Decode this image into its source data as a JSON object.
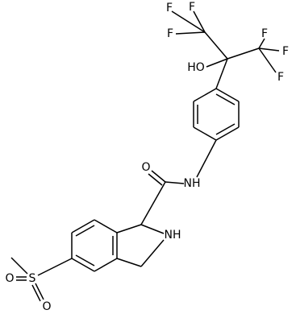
{
  "atoms": [
    {
      "label": "F"
    },
    {
      "label": "F"
    },
    {
      "label": "F"
    },
    {
      "label": "HO"
    },
    {
      "label": "F"
    },
    {
      "label": "F"
    },
    {
      "label": "F"
    },
    {
      "label": "NH"
    },
    {
      "label": "O"
    },
    {
      "label": "NH"
    },
    {
      "label": "S"
    },
    {
      "label": "O"
    },
    {
      "label": "O"
    }
  ]
}
